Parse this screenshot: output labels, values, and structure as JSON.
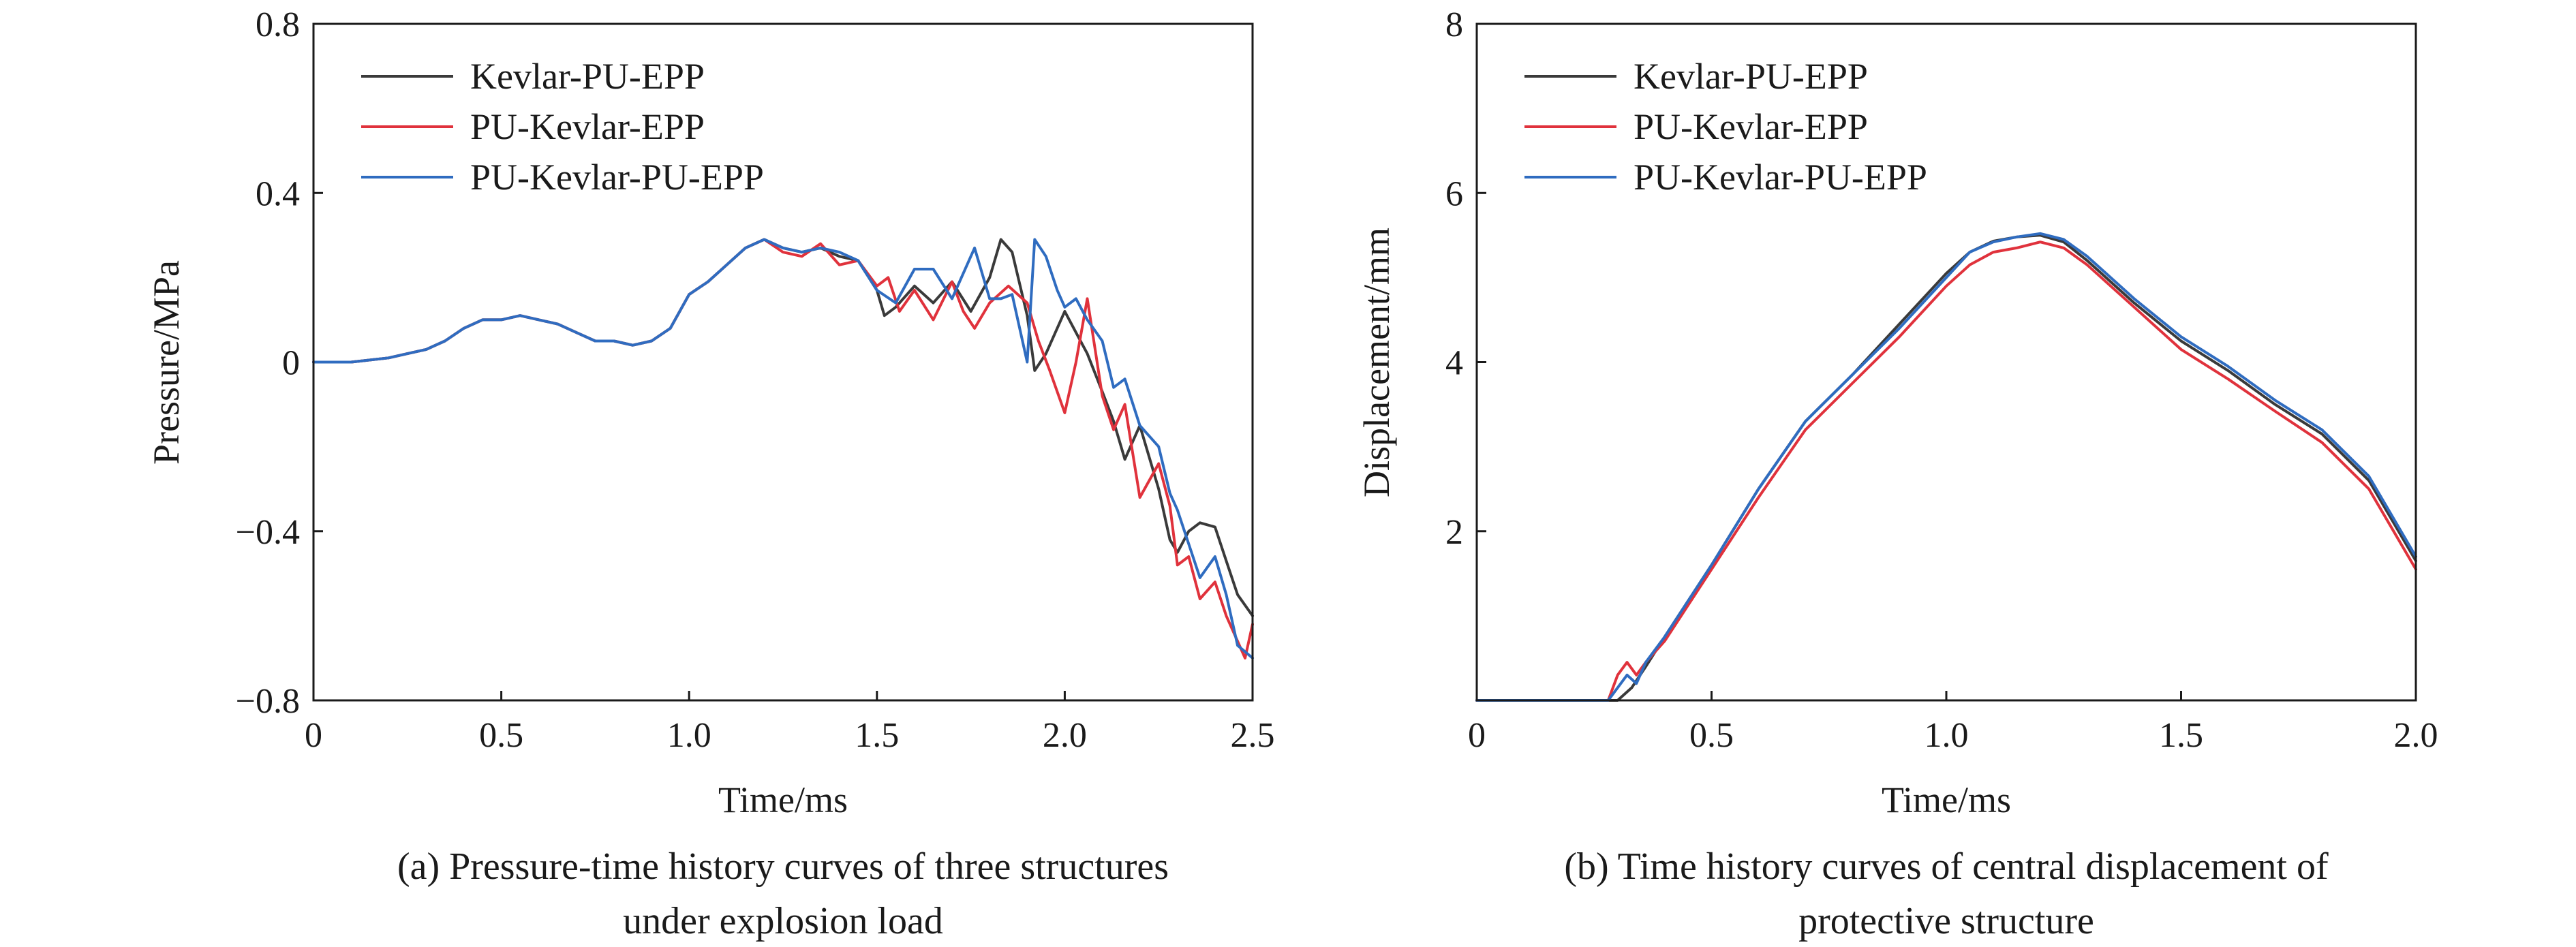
{
  "colors": {
    "kevlar_pu_epp": "#3a3a3a",
    "pu_kevlar_epp": "#e0323c",
    "pu_kevlar_pu_epp": "#2f6cc0"
  },
  "chart_data": [
    {
      "type": "line",
      "ylabel": "Pressure/MPa",
      "xlabel": "Time/ms",
      "caption_line1": "(a) Pressure-time history curves of three structures",
      "caption_line2": "under explosion load",
      "xlim": [
        0,
        2.5
      ],
      "ylim": [
        -0.8,
        0.8
      ],
      "xticks": [
        0,
        0.5,
        1.0,
        1.5,
        2.0,
        2.5
      ],
      "xtick_labels": [
        "0",
        "0.5",
        "1.0",
        "1.5",
        "2.0",
        "2.5"
      ],
      "yticks": [
        -0.8,
        -0.4,
        0,
        0.4,
        0.8
      ],
      "ytick_labels": [
        "−0.8",
        "−0.4",
        "0",
        "0.4",
        "0.8"
      ],
      "legend_position": "top-left",
      "series": [
        {
          "name": "Kevlar-PU-EPP",
          "color_key": "kevlar_pu_epp",
          "x": [
            0,
            0.1,
            0.2,
            0.25,
            0.3,
            0.35,
            0.4,
            0.45,
            0.5,
            0.55,
            0.6,
            0.65,
            0.7,
            0.75,
            0.8,
            0.85,
            0.9,
            0.95,
            1.0,
            1.05,
            1.1,
            1.15,
            1.2,
            1.25,
            1.3,
            1.35,
            1.4,
            1.45,
            1.5,
            1.52,
            1.55,
            1.6,
            1.65,
            1.7,
            1.75,
            1.8,
            1.83,
            1.86,
            1.9,
            1.92,
            1.95,
            2.0,
            2.03,
            2.06,
            2.1,
            2.13,
            2.16,
            2.2,
            2.25,
            2.28,
            2.3,
            2.33,
            2.36,
            2.4,
            2.43,
            2.46,
            2.5
          ],
          "y": [
            0,
            0,
            0.01,
            0.02,
            0.03,
            0.05,
            0.08,
            0.1,
            0.1,
            0.11,
            0.1,
            0.09,
            0.07,
            0.05,
            0.05,
            0.04,
            0.05,
            0.08,
            0.16,
            0.19,
            0.23,
            0.27,
            0.29,
            0.27,
            0.26,
            0.27,
            0.25,
            0.24,
            0.17,
            0.11,
            0.13,
            0.18,
            0.14,
            0.19,
            0.12,
            0.2,
            0.29,
            0.26,
            0.11,
            -0.02,
            0.02,
            0.12,
            0.07,
            0.02,
            -0.07,
            -0.14,
            -0.23,
            -0.15,
            -0.3,
            -0.42,
            -0.45,
            -0.4,
            -0.38,
            -0.39,
            -0.47,
            -0.55,
            -0.6
          ]
        },
        {
          "name": "PU-Kevlar-EPP",
          "color_key": "pu_kevlar_epp",
          "x": [
            0,
            0.1,
            0.2,
            0.25,
            0.3,
            0.35,
            0.4,
            0.45,
            0.5,
            0.55,
            0.6,
            0.65,
            0.7,
            0.75,
            0.8,
            0.85,
            0.9,
            0.95,
            1.0,
            1.05,
            1.1,
            1.15,
            1.2,
            1.25,
            1.3,
            1.35,
            1.4,
            1.45,
            1.5,
            1.53,
            1.56,
            1.6,
            1.65,
            1.7,
            1.73,
            1.76,
            1.8,
            1.85,
            1.9,
            1.93,
            1.96,
            2.0,
            2.03,
            2.06,
            2.1,
            2.13,
            2.16,
            2.2,
            2.25,
            2.28,
            2.3,
            2.33,
            2.36,
            2.4,
            2.43,
            2.46,
            2.48,
            2.5
          ],
          "y": [
            0,
            0,
            0.01,
            0.02,
            0.03,
            0.05,
            0.08,
            0.1,
            0.1,
            0.11,
            0.1,
            0.09,
            0.07,
            0.05,
            0.05,
            0.04,
            0.05,
            0.08,
            0.16,
            0.19,
            0.23,
            0.27,
            0.29,
            0.26,
            0.25,
            0.28,
            0.23,
            0.24,
            0.18,
            0.2,
            0.12,
            0.17,
            0.1,
            0.19,
            0.12,
            0.08,
            0.14,
            0.18,
            0.14,
            0.05,
            -0.02,
            -0.12,
            0.0,
            0.15,
            -0.08,
            -0.16,
            -0.1,
            -0.32,
            -0.24,
            -0.34,
            -0.48,
            -0.46,
            -0.56,
            -0.52,
            -0.6,
            -0.66,
            -0.7,
            -0.62
          ]
        },
        {
          "name": "PU-Kevlar-PU-EPP",
          "color_key": "pu_kevlar_pu_epp",
          "x": [
            0,
            0.1,
            0.2,
            0.25,
            0.3,
            0.35,
            0.4,
            0.45,
            0.5,
            0.55,
            0.6,
            0.65,
            0.7,
            0.75,
            0.8,
            0.85,
            0.9,
            0.95,
            1.0,
            1.05,
            1.1,
            1.15,
            1.2,
            1.25,
            1.3,
            1.35,
            1.4,
            1.45,
            1.5,
            1.55,
            1.6,
            1.65,
            1.7,
            1.76,
            1.8,
            1.83,
            1.86,
            1.9,
            1.92,
            1.95,
            1.98,
            2.0,
            2.03,
            2.06,
            2.1,
            2.13,
            2.16,
            2.2,
            2.25,
            2.28,
            2.3,
            2.33,
            2.36,
            2.4,
            2.43,
            2.46,
            2.5
          ],
          "y": [
            0,
            0,
            0.01,
            0.02,
            0.03,
            0.05,
            0.08,
            0.1,
            0.1,
            0.11,
            0.1,
            0.09,
            0.07,
            0.05,
            0.05,
            0.04,
            0.05,
            0.08,
            0.16,
            0.19,
            0.23,
            0.27,
            0.29,
            0.27,
            0.26,
            0.27,
            0.26,
            0.24,
            0.17,
            0.14,
            0.22,
            0.22,
            0.15,
            0.27,
            0.15,
            0.15,
            0.16,
            0.0,
            0.29,
            0.25,
            0.17,
            0.13,
            0.15,
            0.1,
            0.05,
            -0.06,
            -0.04,
            -0.15,
            -0.2,
            -0.31,
            -0.35,
            -0.43,
            -0.51,
            -0.46,
            -0.55,
            -0.67,
            -0.7
          ]
        }
      ]
    },
    {
      "type": "line",
      "ylabel": "Displacement/mm",
      "xlabel": "Time/ms",
      "caption_line1": "(b) Time history curves of central displacement of",
      "caption_line2": "protective structure",
      "xlim": [
        0,
        2.0
      ],
      "ylim": [
        0,
        8
      ],
      "xticks": [
        0,
        0.5,
        1.0,
        1.5,
        2.0
      ],
      "xtick_labels": [
        "0",
        "0.5",
        "1.0",
        "1.5",
        "2.0"
      ],
      "yticks": [
        2,
        4,
        6,
        8
      ],
      "ytick_labels": [
        "2",
        "4",
        "6",
        "8"
      ],
      "legend_position": "top-left",
      "series": [
        {
          "name": "Kevlar-PU-EPP",
          "color_key": "kevlar_pu_epp",
          "x": [
            0,
            0.28,
            0.3,
            0.33,
            0.36,
            0.4,
            0.5,
            0.6,
            0.7,
            0.8,
            0.9,
            1.0,
            1.05,
            1.1,
            1.15,
            1.2,
            1.25,
            1.3,
            1.4,
            1.5,
            1.6,
            1.7,
            1.8,
            1.9,
            2.0
          ],
          "y": [
            0,
            0,
            0.0,
            0.15,
            0.4,
            0.75,
            1.6,
            2.5,
            3.3,
            3.85,
            4.45,
            5.05,
            5.3,
            5.43,
            5.48,
            5.5,
            5.42,
            5.2,
            4.7,
            4.25,
            3.9,
            3.5,
            3.15,
            2.6,
            1.65
          ]
        },
        {
          "name": "PU-Kevlar-EPP",
          "color_key": "pu_kevlar_epp",
          "x": [
            0,
            0.28,
            0.3,
            0.32,
            0.34,
            0.36,
            0.4,
            0.5,
            0.6,
            0.7,
            0.8,
            0.9,
            1.0,
            1.05,
            1.1,
            1.15,
            1.2,
            1.25,
            1.3,
            1.4,
            1.5,
            1.6,
            1.7,
            1.8,
            1.9,
            2.0
          ],
          "y": [
            0,
            0,
            0.3,
            0.45,
            0.3,
            0.45,
            0.7,
            1.55,
            2.4,
            3.2,
            3.75,
            4.3,
            4.9,
            5.15,
            5.3,
            5.35,
            5.42,
            5.35,
            5.15,
            4.65,
            4.15,
            3.8,
            3.42,
            3.05,
            2.5,
            1.55
          ]
        },
        {
          "name": "PU-Kevlar-PU-EPP",
          "color_key": "pu_kevlar_pu_epp",
          "x": [
            0,
            0.28,
            0.3,
            0.32,
            0.34,
            0.36,
            0.4,
            0.5,
            0.6,
            0.7,
            0.8,
            0.9,
            1.0,
            1.05,
            1.1,
            1.15,
            1.2,
            1.25,
            1.3,
            1.4,
            1.5,
            1.6,
            1.7,
            1.8,
            1.9,
            2.0
          ],
          "y": [
            0,
            0,
            0.15,
            0.3,
            0.2,
            0.45,
            0.75,
            1.6,
            2.5,
            3.3,
            3.85,
            4.4,
            5.0,
            5.3,
            5.42,
            5.48,
            5.52,
            5.45,
            5.25,
            4.75,
            4.3,
            3.95,
            3.55,
            3.2,
            2.65,
            1.7
          ]
        }
      ]
    }
  ]
}
